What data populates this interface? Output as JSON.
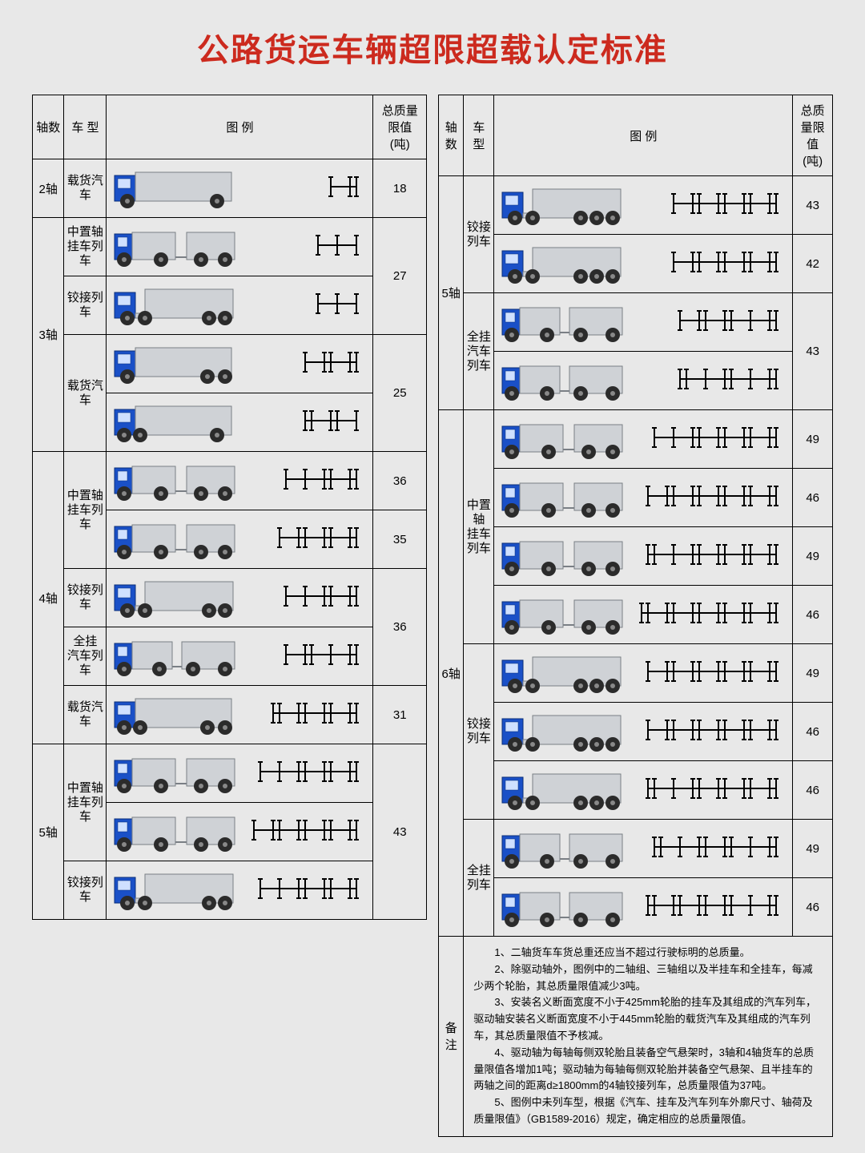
{
  "title": "公路货运车辆超限超载认定标准",
  "columns": {
    "axle": "轴数",
    "type": "车  型",
    "illus": "图  例",
    "limit": "总质量限值\n(吨)"
  },
  "colors": {
    "background": "#e8e8e8",
    "title": "#cc2a1e",
    "border": "#000000",
    "cab": "#1a50c7",
    "cab_stroke": "#0a2e78",
    "body": "#cfd2d6",
    "body_stroke": "#7a7f85",
    "wheel": "#2b2b2b",
    "axle_line": "#000000"
  },
  "truck_geom": {
    "scale": 1.0,
    "wheel_r": 8
  },
  "leftTable": [
    {
      "axle": "2轴",
      "groups": [
        {
          "type": "载货汽车",
          "limit": "18",
          "rows": [
            {
              "truck": "rigid1",
              "axles": [
                [
                  0
                ],
                [
                  0,
                  0
                ]
              ]
            }
          ]
        }
      ]
    },
    {
      "axle": "3轴",
      "groups": [
        {
          "type": "中置轴\n挂车列车",
          "limit": "27",
          "rows": [
            {
              "truck": "drawbar2",
              "axles": [
                [
                  0
                ],
                [
                  0
                ],
                [
                  0
                ]
              ]
            }
          ]
        },
        {
          "type": "铰接列车",
          "limit": "",
          "rows": [
            {
              "truck": "semi1",
              "axles": [
                [
                  0
                ],
                [
                  0
                ],
                [
                  0
                ]
              ]
            }
          ]
        },
        {
          "type": "载货汽车",
          "limit": "25",
          "limitSpan": 2,
          "rows": [
            {
              "truck": "rigid2a",
              "axles": [
                [
                  0
                ],
                [
                  0,
                  0
                ],
                [
                  0,
                  0
                ]
              ]
            },
            {
              "truck": "rigid2b",
              "axles": [
                [
                  0,
                  0
                ],
                [
                  0,
                  0
                ],
                [
                  0
                ]
              ]
            }
          ]
        }
      ],
      "limitMergeAt": 0
    },
    {
      "axle": "4轴",
      "groups": [
        {
          "type": "中置轴\n挂车列车",
          "limit": "36",
          "rows": [
            {
              "truck": "drawbar4a",
              "axles": [
                [
                  0
                ],
                [
                  0
                ],
                [
                  0,
                  0
                ],
                [
                  0,
                  0
                ]
              ]
            }
          ]
        },
        {
          "type_cont": true,
          "limit": "35",
          "rows": [
            {
              "truck": "drawbar4b",
              "axles": [
                [
                  0
                ],
                [
                  0,
                  0
                ],
                [
                  0,
                  0
                ],
                [
                  0,
                  0
                ]
              ]
            }
          ]
        },
        {
          "type": "铰接列车",
          "limit": "36",
          "rows": [
            {
              "truck": "semi4",
              "axles": [
                [
                  0
                ],
                [
                  0
                ],
                [
                  0,
                  0
                ],
                [
                  0,
                  0
                ]
              ]
            }
          ]
        },
        {
          "type": "全挂\n汽车列车",
          "limit": "",
          "rows": [
            {
              "truck": "full4",
              "axles": [
                [
                  0
                ],
                [
                  0,
                  0
                ],
                [
                  0
                ],
                [
                  0,
                  0
                ]
              ]
            }
          ]
        },
        {
          "type": "载货汽车",
          "limit": "31",
          "rows": [
            {
              "truck": "rigid4",
              "axles": [
                [
                  0,
                  0
                ],
                [
                  0,
                  0
                ],
                [
                  0,
                  0
                ],
                [
                  0,
                  0
                ]
              ]
            }
          ]
        }
      ]
    },
    {
      "axle": "5轴",
      "groups": [
        {
          "type": "中置轴\n挂车列车",
          "limit": "43",
          "limitSpan": 3,
          "rows": [
            {
              "truck": "drawbar5a",
              "axles": [
                [
                  0
                ],
                [
                  0
                ],
                [
                  0,
                  0
                ],
                [
                  0,
                  0
                ],
                [
                  0,
                  0
                ]
              ]
            },
            {
              "truck": "drawbar5b",
              "axles": [
                [
                  0
                ],
                [
                  0,
                  0
                ],
                [
                  0,
                  0
                ],
                [
                  0,
                  0
                ],
                [
                  0,
                  0
                ]
              ]
            }
          ]
        },
        {
          "type": "铰接列车",
          "limit": "",
          "rows": [
            {
              "truck": "semi5",
              "axles": [
                [
                  0
                ],
                [
                  0
                ],
                [
                  0,
                  0
                ],
                [
                  0,
                  0
                ],
                [
                  0,
                  0
                ]
              ]
            }
          ]
        }
      ]
    }
  ],
  "rightTable": [
    {
      "axle": "5轴",
      "groups": [
        {
          "type": "铰接列车",
          "typeSpan": 2,
          "rows": [
            {
              "truck": "semi5b",
              "axles": [
                [
                  0
                ],
                [
                  0,
                  0
                ],
                [
                  0,
                  0
                ],
                [
                  0,
                  0
                ],
                [
                  0,
                  0
                ]
              ],
              "limit": "43"
            },
            {
              "truck": "semi5c",
              "axles": [
                [
                  0
                ],
                [
                  0,
                  0
                ],
                [
                  0,
                  0
                ],
                [
                  0,
                  0
                ],
                [
                  0,
                  0
                ]
              ],
              "limit": "42"
            }
          ]
        },
        {
          "type": "全挂\n汽车列车",
          "typeSpan": 2,
          "limit": "43",
          "limitSpan": 2,
          "rows": [
            {
              "truck": "full5a",
              "axles": [
                [
                  0
                ],
                [
                  0,
                  0
                ],
                [
                  0,
                  0
                ],
                [
                  0
                ],
                [
                  0,
                  0
                ]
              ]
            },
            {
              "truck": "full5b",
              "axles": [
                [
                  0,
                  0
                ],
                [
                  0
                ],
                [
                  0,
                  0
                ],
                [
                  0
                ],
                [
                  0,
                  0
                ]
              ]
            }
          ]
        }
      ]
    },
    {
      "axle": "6轴",
      "groups": [
        {
          "type": "中置轴\n挂车列车",
          "typeSpan": 4,
          "rows": [
            {
              "truck": "db6a",
              "axles": [
                [
                  0
                ],
                [
                  0
                ],
                [
                  0,
                  0
                ],
                [
                  0,
                  0
                ],
                [
                  0,
                  0
                ],
                [
                  0,
                  0
                ]
              ],
              "limit": "49"
            },
            {
              "truck": "db6b",
              "axles": [
                [
                  0
                ],
                [
                  0,
                  0
                ],
                [
                  0,
                  0
                ],
                [
                  0,
                  0
                ],
                [
                  0,
                  0
                ],
                [
                  0,
                  0
                ]
              ],
              "limit": "46"
            },
            {
              "truck": "db6c",
              "axles": [
                [
                  0,
                  0
                ],
                [
                  0
                ],
                [
                  0,
                  0
                ],
                [
                  0,
                  0
                ],
                [
                  0,
                  0
                ],
                [
                  0,
                  0
                ]
              ],
              "limit": "49"
            },
            {
              "truck": "db6d",
              "axles": [
                [
                  0,
                  0
                ],
                [
                  0,
                  0
                ],
                [
                  0,
                  0
                ],
                [
                  0,
                  0
                ],
                [
                  0,
                  0
                ],
                [
                  0,
                  0
                ]
              ],
              "limit": "46"
            }
          ]
        },
        {
          "type": "铰接列车",
          "typeSpan": 3,
          "rows": [
            {
              "truck": "semi6a",
              "axles": [
                [
                  0
                ],
                [
                  0,
                  0
                ],
                [
                  0,
                  0
                ],
                [
                  0,
                  0
                ],
                [
                  0,
                  0
                ],
                [
                  0,
                  0
                ]
              ],
              "limit": "49"
            },
            {
              "truck": "semi6b",
              "axles": [
                [
                  0
                ],
                [
                  0,
                  0
                ],
                [
                  0,
                  0
                ],
                [
                  0,
                  0
                ],
                [
                  0,
                  0
                ],
                [
                  0,
                  0
                ]
              ],
              "limit": "46"
            },
            {
              "truck": "semi6c",
              "axles": [
                [
                  0,
                  0
                ],
                [
                  0
                ],
                [
                  0,
                  0
                ],
                [
                  0,
                  0
                ],
                [
                  0,
                  0
                ],
                [
                  0,
                  0
                ]
              ],
              "limit": "46"
            }
          ]
        },
        {
          "type": "全挂列车",
          "typeSpan": 2,
          "rows": [
            {
              "truck": "full6a",
              "axles": [
                [
                  0,
                  0
                ],
                [
                  0
                ],
                [
                  0,
                  0
                ],
                [
                  0,
                  0
                ],
                [
                  0
                ],
                [
                  0,
                  0
                ]
              ],
              "limit": "49"
            },
            {
              "truck": "full6b",
              "axles": [
                [
                  0,
                  0
                ],
                [
                  0,
                  0
                ],
                [
                  0,
                  0
                ],
                [
                  0,
                  0
                ],
                [
                  0
                ],
                [
                  0,
                  0
                ]
              ],
              "limit": "46"
            }
          ]
        }
      ]
    }
  ],
  "notesLabel": "备注",
  "notes": [
    "1、二轴货车车货总重还应当不超过行驶标明的总质量。",
    "2、除驱动轴外，图例中的二轴组、三轴组以及半挂车和全挂车，每减少两个轮胎，其总质量限值减少3吨。",
    "3、安装名义断面宽度不小于425mm轮胎的挂车及其组成的汽车列车，驱动轴安装名义断面宽度不小于445mm轮胎的载货汽车及其组成的汽车列车，其总质量限值不予核减。",
    "4、驱动轴为每轴每侧双轮胎且装备空气悬架时，3轴和4轴货车的总质量限值各增加1吨；驱动轴为每轴每侧双轮胎并装备空气悬架、且半挂车的两轴之间的距离d≥1800mm的4轴铰接列车，总质量限值为37吨。",
    "5、图例中未列车型，根据《汽车、挂车及汽车列车外廓尺寸、轴荷及质量限值》（GB1589-2016）规定，确定相应的总质量限值。"
  ]
}
